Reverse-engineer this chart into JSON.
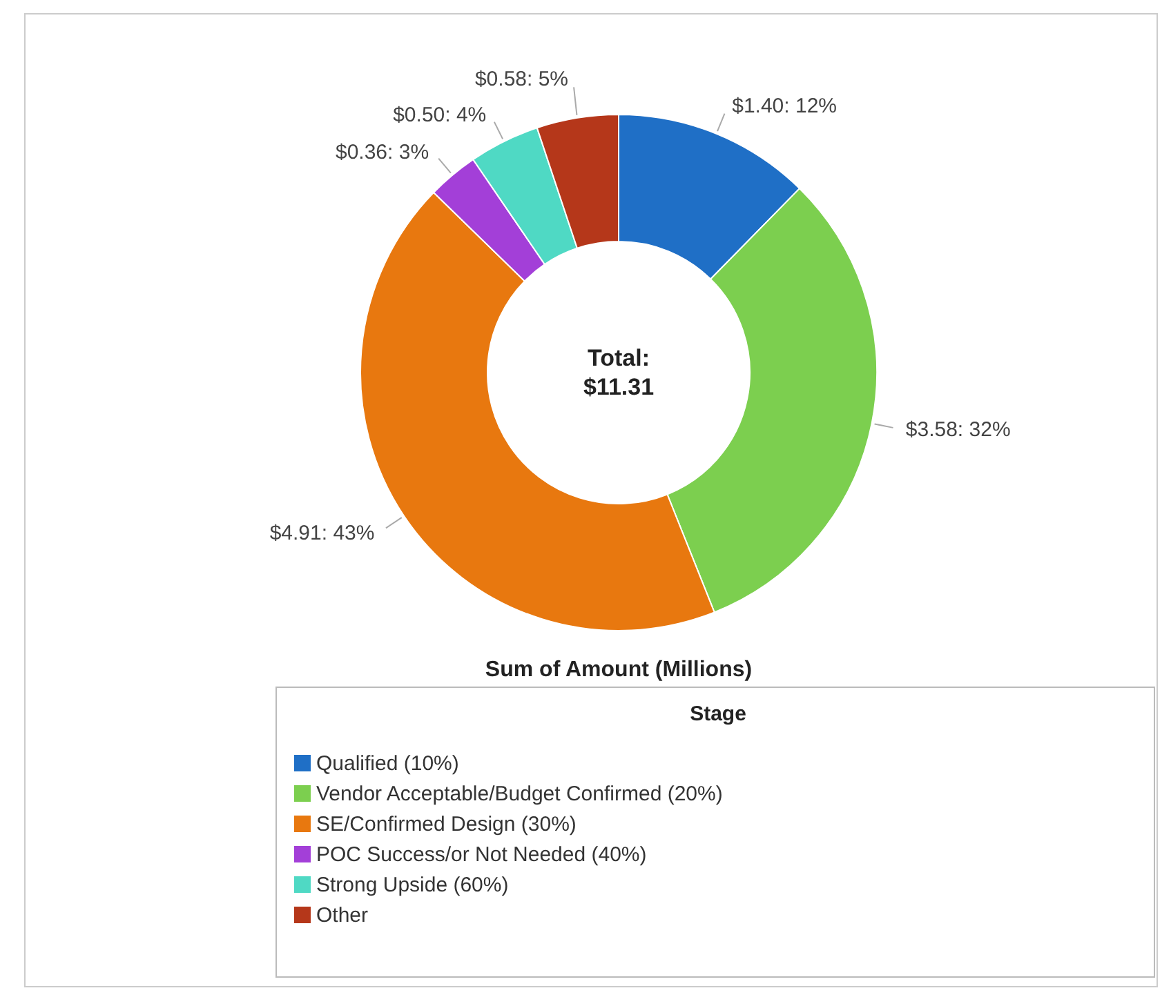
{
  "chart_data": {
    "type": "donut",
    "xlabel": "Sum of Amount (Millions)",
    "legend_title": "Stage",
    "legend": "bottom",
    "categories": [
      "Qualified (10%)",
      "Vendor Acceptable/Budget Confirmed (20%)",
      "SE/Confirmed Design (30%)",
      "POC Success/or Not Needed (40%)",
      "Strong Upside (60%)",
      "Other"
    ],
    "values": [
      1.4,
      3.58,
      4.91,
      0.36,
      0.5,
      0.58
    ],
    "colors": [
      "#1f6fc6",
      "#7ccf4f",
      "#e8780f",
      "#a33fd8",
      "#4fd9c4",
      "#b5371a"
    ],
    "value_labels": [
      "$1.40: 12%",
      "$3.58: 32%",
      "$4.91: 43%",
      "$0.36: 3%",
      "$0.50: 4%",
      "$0.58: 5%"
    ],
    "annotations": [
      "Total:\n$11.31"
    ]
  }
}
